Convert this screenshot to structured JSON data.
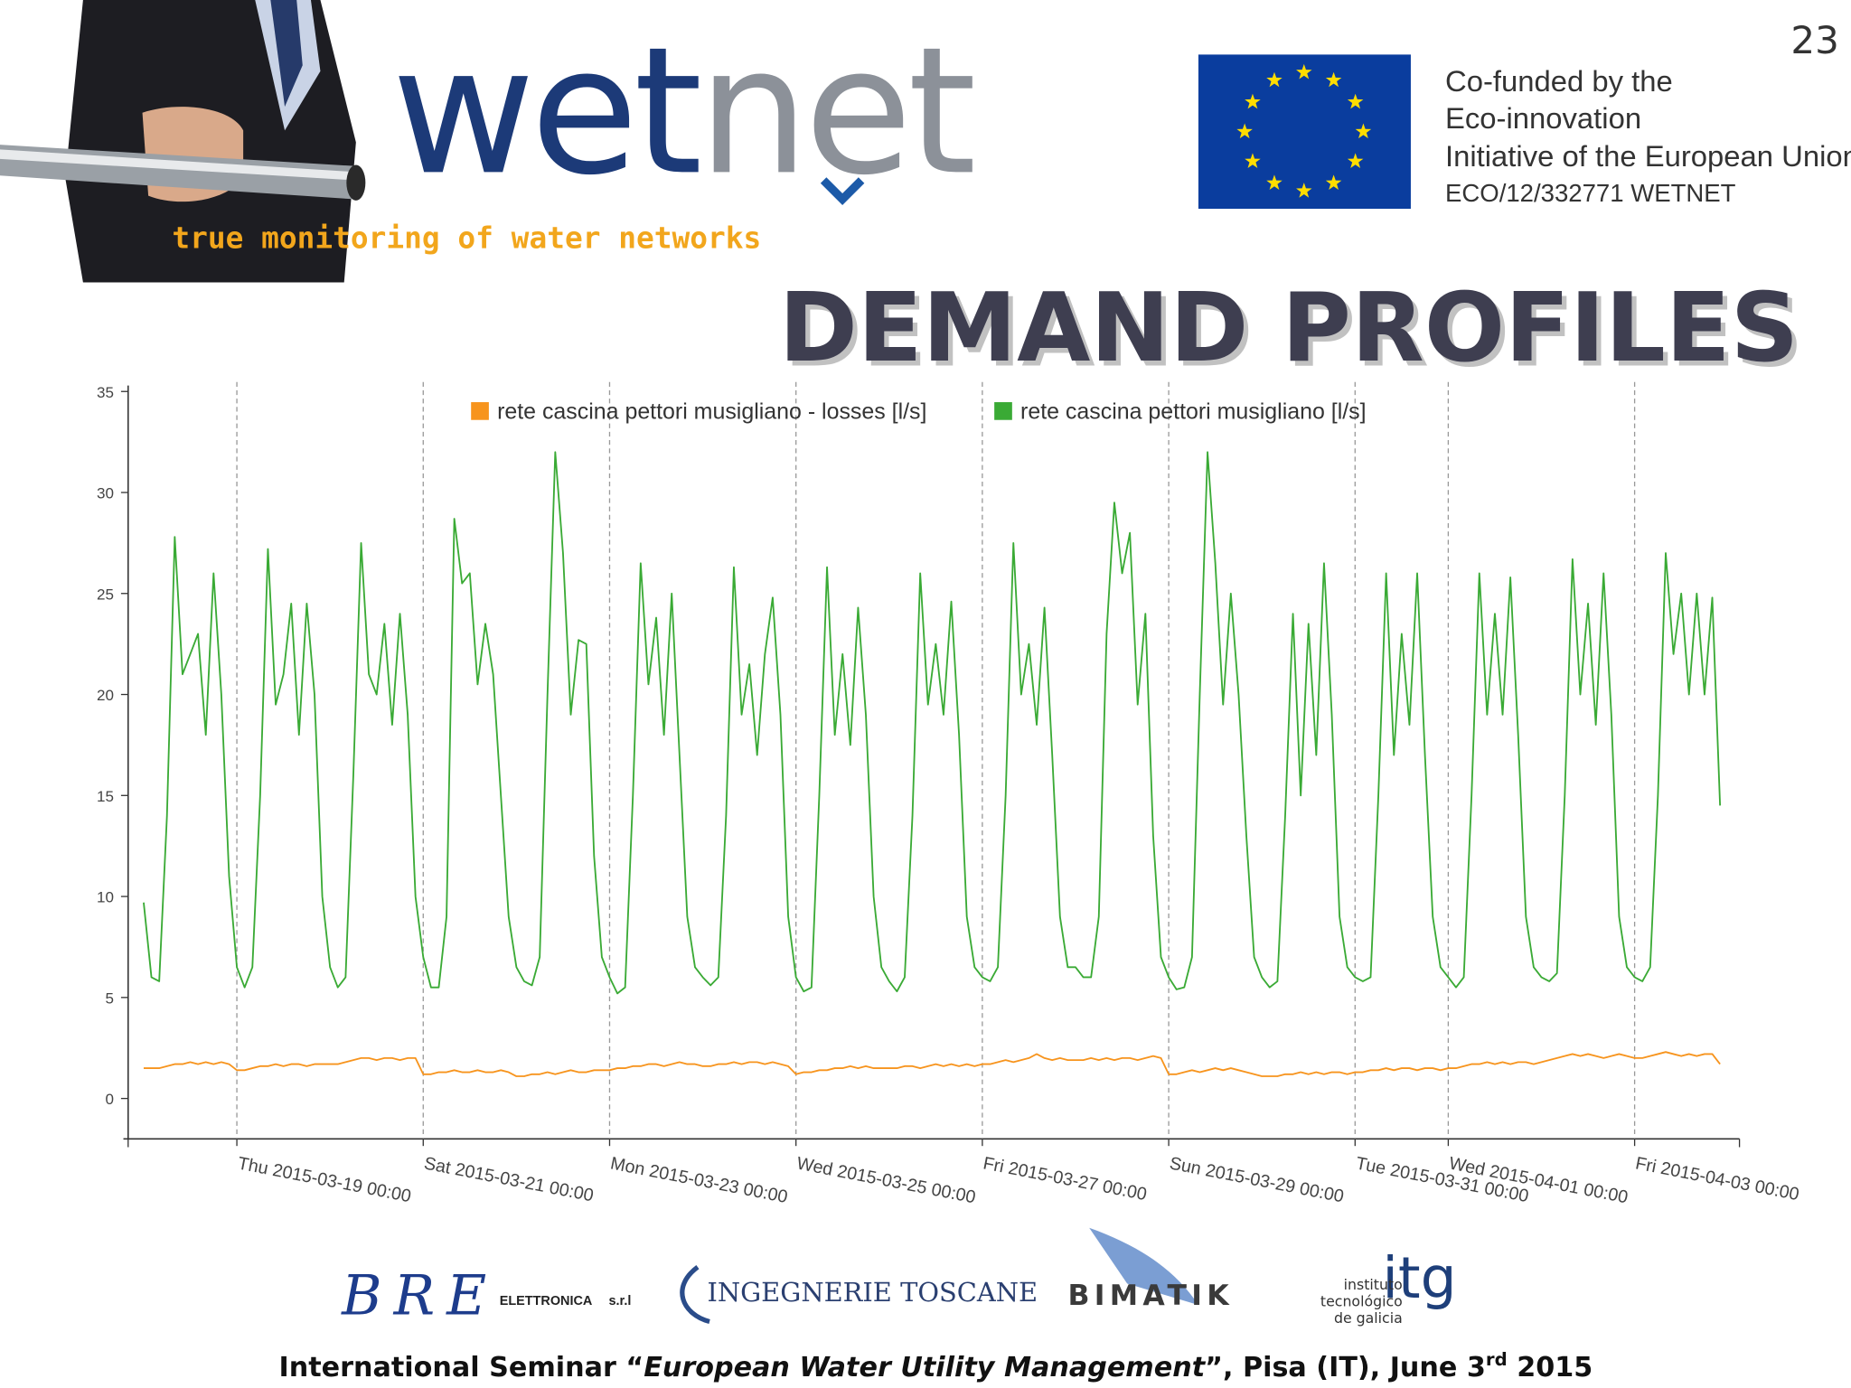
{
  "page_number": "23",
  "logo_parts": [
    "wet",
    "net"
  ],
  "tagline": "true monitoring of water networks",
  "eu_text": [
    "Co-funded by the",
    "Eco-innovation",
    "Initiative of the European Union",
    "ECO/12/332771 WETNET"
  ],
  "heading": "DEMAND PROFILES",
  "partners": {
    "bre": "BRE",
    "bre_sub": [
      "ELETTRONICA",
      "s.r.l"
    ],
    "ingegnerie": "INGEGNERIE TOSCANE",
    "bimatik": "BIMATIK",
    "itg": "itg",
    "itg_sub": [
      "instituto",
      "tecnológico",
      "de galicia"
    ]
  },
  "footer": [
    "International Seminar “",
    "European Water Utility Management",
    "”, Pisa (IT), June 3",
    "rd",
    " 2015"
  ],
  "chart_data": {
    "type": "line",
    "x": [
      "2015-03-18 00:00",
      "2015-03-18 02:00",
      "2015-03-18 04:00",
      "2015-03-18 06:00",
      "2015-03-18 08:00",
      "2015-03-18 10:00",
      "2015-03-18 12:00",
      "2015-03-18 14:00",
      "2015-03-18 16:00",
      "2015-03-18 18:00",
      "2015-03-18 20:00",
      "2015-03-18 22:00",
      "2015-03-19 00:00",
      "2015-03-19 02:00",
      "2015-03-19 04:00",
      "2015-03-19 06:00",
      "2015-03-19 08:00",
      "2015-03-19 10:00",
      "2015-03-19 12:00",
      "2015-03-19 14:00",
      "2015-03-19 16:00",
      "2015-03-19 18:00",
      "2015-03-19 20:00",
      "2015-03-19 22:00",
      "2015-03-20 00:00",
      "2015-03-20 02:00",
      "2015-03-20 04:00",
      "2015-03-20 06:00",
      "2015-03-20 08:00",
      "2015-03-20 10:00",
      "2015-03-20 12:00",
      "2015-03-20 14:00",
      "2015-03-20 16:00",
      "2015-03-20 18:00",
      "2015-03-20 20:00",
      "2015-03-20 22:00",
      "2015-03-21 00:00",
      "2015-03-21 02:00",
      "2015-03-21 04:00",
      "2015-03-21 06:00",
      "2015-03-21 08:00",
      "2015-03-21 10:00",
      "2015-03-21 12:00",
      "2015-03-21 14:00",
      "2015-03-21 16:00",
      "2015-03-21 18:00",
      "2015-03-21 20:00",
      "2015-03-21 22:00",
      "2015-03-22 00:00",
      "2015-03-22 02:00",
      "2015-03-22 04:00",
      "2015-03-22 06:00",
      "2015-03-22 08:00",
      "2015-03-22 10:00",
      "2015-03-22 12:00",
      "2015-03-22 14:00",
      "2015-03-22 16:00",
      "2015-03-22 18:00",
      "2015-03-22 20:00",
      "2015-03-22 22:00",
      "2015-03-23 00:00",
      "2015-03-23 02:00",
      "2015-03-23 04:00",
      "2015-03-23 06:00",
      "2015-03-23 08:00",
      "2015-03-23 10:00",
      "2015-03-23 12:00",
      "2015-03-23 14:00",
      "2015-03-23 16:00",
      "2015-03-23 18:00",
      "2015-03-23 20:00",
      "2015-03-23 22:00",
      "2015-03-24 00:00",
      "2015-03-24 02:00",
      "2015-03-24 04:00",
      "2015-03-24 06:00",
      "2015-03-24 08:00",
      "2015-03-24 10:00",
      "2015-03-24 12:00",
      "2015-03-24 14:00",
      "2015-03-24 16:00",
      "2015-03-24 18:00",
      "2015-03-24 20:00",
      "2015-03-24 22:00",
      "2015-03-25 00:00",
      "2015-03-25 02:00",
      "2015-03-25 04:00",
      "2015-03-25 06:00",
      "2015-03-25 08:00",
      "2015-03-25 10:00",
      "2015-03-25 12:00",
      "2015-03-25 14:00",
      "2015-03-25 16:00",
      "2015-03-25 18:00",
      "2015-03-25 20:00",
      "2015-03-25 22:00",
      "2015-03-26 00:00",
      "2015-03-26 02:00",
      "2015-03-26 04:00",
      "2015-03-26 06:00",
      "2015-03-26 08:00",
      "2015-03-26 10:00",
      "2015-03-26 12:00",
      "2015-03-26 14:00",
      "2015-03-26 16:00",
      "2015-03-26 18:00",
      "2015-03-26 20:00",
      "2015-03-26 22:00",
      "2015-03-27 00:00",
      "2015-03-27 02:00",
      "2015-03-27 04:00",
      "2015-03-27 06:00",
      "2015-03-27 08:00",
      "2015-03-27 10:00",
      "2015-03-27 12:00",
      "2015-03-27 14:00",
      "2015-03-27 16:00",
      "2015-03-27 18:00",
      "2015-03-27 20:00",
      "2015-03-27 22:00",
      "2015-03-28 00:00",
      "2015-03-28 02:00",
      "2015-03-28 04:00",
      "2015-03-28 06:00",
      "2015-03-28 08:00",
      "2015-03-28 10:00",
      "2015-03-28 12:00",
      "2015-03-28 14:00",
      "2015-03-28 16:00",
      "2015-03-28 18:00",
      "2015-03-28 20:00",
      "2015-03-28 22:00",
      "2015-03-29 00:00",
      "2015-03-29 02:00",
      "2015-03-29 04:00",
      "2015-03-29 06:00",
      "2015-03-29 08:00",
      "2015-03-29 10:00",
      "2015-03-29 12:00",
      "2015-03-29 14:00",
      "2015-03-29 16:00",
      "2015-03-29 18:00",
      "2015-03-29 20:00",
      "2015-03-29 22:00",
      "2015-03-30 00:00",
      "2015-03-30 02:00",
      "2015-03-30 04:00",
      "2015-03-30 06:00",
      "2015-03-30 08:00",
      "2015-03-30 10:00",
      "2015-03-30 12:00",
      "2015-03-30 14:00",
      "2015-03-30 16:00",
      "2015-03-30 18:00",
      "2015-03-30 20:00",
      "2015-03-30 22:00",
      "2015-03-31 00:00",
      "2015-03-31 02:00",
      "2015-03-31 04:00",
      "2015-03-31 06:00",
      "2015-03-31 08:00",
      "2015-03-31 10:00",
      "2015-03-31 12:00",
      "2015-03-31 14:00",
      "2015-03-31 16:00",
      "2015-03-31 18:00",
      "2015-03-31 20:00",
      "2015-03-31 22:00",
      "2015-04-01 00:00",
      "2015-04-01 02:00",
      "2015-04-01 04:00",
      "2015-04-01 06:00",
      "2015-04-01 08:00",
      "2015-04-01 10:00",
      "2015-04-01 12:00",
      "2015-04-01 14:00",
      "2015-04-01 16:00",
      "2015-04-01 18:00",
      "2015-04-01 20:00",
      "2015-04-01 22:00",
      "2015-04-02 00:00",
      "2015-04-02 02:00",
      "2015-04-02 04:00",
      "2015-04-02 06:00",
      "2015-04-02 08:00",
      "2015-04-02 10:00",
      "2015-04-02 12:00",
      "2015-04-02 14:00",
      "2015-04-02 16:00",
      "2015-04-02 18:00",
      "2015-04-02 20:00",
      "2015-04-02 22:00",
      "2015-04-03 00:00",
      "2015-04-03 02:00",
      "2015-04-03 04:00",
      "2015-04-03 06:00",
      "2015-04-03 08:00",
      "2015-04-03 10:00",
      "2015-04-03 12:00",
      "2015-04-03 14:00",
      "2015-04-03 16:00",
      "2015-04-03 18:00",
      "2015-04-03 20:00",
      "2015-04-03 22:00"
    ],
    "series": [
      {
        "name": "rete cascina pettori musigliano - losses [l/s]",
        "color": "#f7941d",
        "values": [
          1.5,
          1.5,
          1.5,
          1.6,
          1.7,
          1.7,
          1.8,
          1.7,
          1.8,
          1.7,
          1.8,
          1.7,
          1.4,
          1.4,
          1.5,
          1.6,
          1.6,
          1.7,
          1.6,
          1.7,
          1.7,
          1.6,
          1.7,
          1.7,
          1.7,
          1.7,
          1.8,
          1.9,
          2.0,
          2.0,
          1.9,
          2.0,
          2.0,
          1.9,
          2.0,
          2.0,
          1.2,
          1.2,
          1.3,
          1.3,
          1.4,
          1.3,
          1.3,
          1.4,
          1.3,
          1.3,
          1.4,
          1.3,
          1.1,
          1.1,
          1.2,
          1.2,
          1.3,
          1.2,
          1.3,
          1.4,
          1.3,
          1.3,
          1.4,
          1.4,
          1.4,
          1.5,
          1.5,
          1.6,
          1.6,
          1.7,
          1.7,
          1.6,
          1.7,
          1.8,
          1.7,
          1.7,
          1.6,
          1.6,
          1.7,
          1.7,
          1.8,
          1.7,
          1.8,
          1.8,
          1.7,
          1.8,
          1.7,
          1.6,
          1.2,
          1.3,
          1.3,
          1.4,
          1.4,
          1.5,
          1.5,
          1.6,
          1.5,
          1.6,
          1.5,
          1.5,
          1.5,
          1.5,
          1.6,
          1.6,
          1.5,
          1.6,
          1.7,
          1.6,
          1.7,
          1.6,
          1.7,
          1.6,
          1.7,
          1.7,
          1.8,
          1.9,
          1.8,
          1.9,
          2.0,
          2.2,
          2.0,
          1.9,
          2.0,
          1.9,
          1.9,
          1.9,
          2.0,
          1.9,
          2.0,
          1.9,
          2.0,
          2.0,
          1.9,
          2.0,
          2.1,
          2.0,
          1.2,
          1.2,
          1.3,
          1.4,
          1.3,
          1.4,
          1.5,
          1.4,
          1.5,
          1.4,
          1.3,
          1.2,
          1.1,
          1.1,
          1.1,
          1.2,
          1.2,
          1.3,
          1.2,
          1.3,
          1.2,
          1.3,
          1.3,
          1.2,
          1.3,
          1.3,
          1.4,
          1.4,
          1.5,
          1.4,
          1.5,
          1.5,
          1.4,
          1.5,
          1.5,
          1.4,
          1.5,
          1.5,
          1.6,
          1.7,
          1.7,
          1.8,
          1.7,
          1.8,
          1.7,
          1.8,
          1.8,
          1.7,
          1.8,
          1.9,
          2.0,
          2.1,
          2.2,
          2.1,
          2.2,
          2.1,
          2.0,
          2.1,
          2.2,
          2.1,
          2.0,
          2.0,
          2.1,
          2.2,
          2.3,
          2.2,
          2.1,
          2.2,
          2.1,
          2.2,
          2.2,
          1.7
        ]
      },
      {
        "name": "rete cascina pettori musigliano [l/s]",
        "color": "#3aaa35",
        "values": [
          9.7,
          6,
          5.8,
          14,
          27.8,
          21,
          22,
          23,
          18,
          26,
          20,
          11,
          6.5,
          5.5,
          6.5,
          15,
          27.2,
          19.5,
          21,
          24.5,
          18,
          24.5,
          20,
          10,
          6.5,
          5.5,
          6,
          16,
          27.5,
          21,
          20,
          23.5,
          18.5,
          24,
          19,
          10,
          7,
          5.5,
          5.5,
          9,
          28.7,
          25.5,
          26,
          20.5,
          23.5,
          21,
          15,
          9,
          6.5,
          5.8,
          5.6,
          7,
          20,
          32,
          27,
          19,
          22.7,
          22.5,
          12,
          7,
          6,
          5.2,
          5.5,
          15,
          26.5,
          20.5,
          23.8,
          18,
          25,
          17,
          9,
          6.5,
          6,
          5.6,
          6,
          14,
          26.3,
          19,
          21.5,
          17,
          22,
          24.8,
          19,
          9,
          6,
          5.3,
          5.5,
          15,
          26.3,
          18,
          22,
          17.5,
          24.3,
          19,
          10,
          6.5,
          5.8,
          5.3,
          6,
          14,
          26,
          19.5,
          22.5,
          19,
          24.6,
          18,
          9,
          6.5,
          6,
          5.8,
          6.5,
          15,
          27.5,
          20,
          22.5,
          18.5,
          24.3,
          17,
          9,
          6.5,
          6.5,
          6,
          6,
          9,
          23,
          29.5,
          26,
          28,
          19.5,
          24,
          13,
          7,
          6,
          5.4,
          5.5,
          7,
          20,
          32,
          26.5,
          19.5,
          25,
          20,
          13,
          7,
          6,
          5.5,
          5.8,
          14,
          24,
          15,
          23.5,
          17,
          26.5,
          19,
          9,
          6.5,
          6,
          5.8,
          6,
          15,
          26,
          17,
          23,
          18.5,
          26,
          17,
          9,
          6.5,
          6,
          5.5,
          6,
          15,
          26,
          19,
          24,
          19,
          25.8,
          18,
          9,
          6.5,
          6,
          5.8,
          6.2,
          15,
          26.7,
          20,
          24.5,
          18.5,
          26,
          19,
          9,
          6.5,
          6,
          5.8,
          6.5,
          15,
          27,
          22,
          25,
          20,
          25,
          20,
          24.8,
          14.5
        ]
      }
    ],
    "xlim": [
      "2015-03-17 20:00",
      "2015-04-04 03:00"
    ],
    "xticks": [
      {
        "value": "2015-03-19 00:00",
        "label": "Thu 2015-03-19 00:00"
      },
      {
        "value": "2015-03-21 00:00",
        "label": "Sat 2015-03-21 00:00"
      },
      {
        "value": "2015-03-23 00:00",
        "label": "Mon 2015-03-23 00:00"
      },
      {
        "value": "2015-03-25 00:00",
        "label": "Wed 2015-03-25 00:00"
      },
      {
        "value": "2015-03-27 00:00",
        "label": "Fri 2015-03-27 00:00"
      },
      {
        "value": "2015-03-29 00:00",
        "label": "Sun 2015-03-29 00:00"
      },
      {
        "value": "2015-03-31 00:00",
        "label": "Tue 2015-03-31 00:00"
      },
      {
        "value": "2015-04-01 00:00",
        "label": "Wed 2015-04-01 00:00"
      },
      {
        "value": "2015-04-03 00:00",
        "label": "Fri 2015-04-03 00:00"
      }
    ],
    "ylim": [
      -2,
      35
    ],
    "yticks": [
      0,
      5,
      10,
      15,
      20,
      25,
      30,
      35
    ],
    "grid": "x",
    "legend": "top"
  }
}
